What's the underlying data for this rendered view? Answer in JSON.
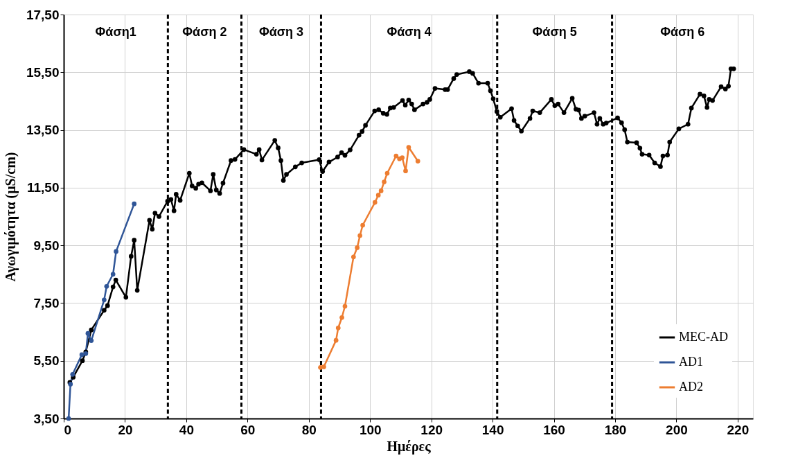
{
  "chart_data": {
    "type": "line",
    "xlabel": "Ημέρες",
    "ylabel": "Αγωγιμότητα (μS/cm)",
    "xlim": [
      0,
      225
    ],
    "xticks": [
      0,
      20,
      40,
      60,
      80,
      100,
      120,
      140,
      160,
      180,
      200,
      220
    ],
    "ylim": [
      3.5,
      17.5
    ],
    "yticks": [
      {
        "value": 3.5,
        "label": "3,50"
      },
      {
        "value": 5.5,
        "label": "5,50"
      },
      {
        "value": 7.5,
        "label": "7,50"
      },
      {
        "value": 9.5,
        "label": "9,50"
      },
      {
        "value": 11.5,
        "label": "11,50"
      },
      {
        "value": 13.5,
        "label": "13,50"
      },
      {
        "value": 15.5,
        "label": "15,50"
      },
      {
        "value": 17.5,
        "label": "17,50"
      }
    ],
    "grid": true,
    "legend": "bottom right",
    "marker": "circle",
    "line_style": "solid",
    "series": [
      {
        "name": "MEC-AD",
        "color": "#000000",
        "x": [
          2,
          3.1,
          6.1,
          7.2,
          9.0,
          13.2,
          14.3,
          16.1,
          17.0,
          20.3,
          22.0,
          23.0,
          24.0,
          28.0,
          28.9,
          29.8,
          31.1,
          33.9,
          35.0,
          36.0,
          36.7,
          38.0,
          41.0,
          41.9,
          43.1,
          44.0,
          45.1,
          47.9,
          48.8,
          49.8,
          50.9,
          52.0,
          54.6,
          55.9,
          58.8,
          62.9,
          63.8,
          64.7,
          68.9,
          70.0,
          70.9,
          71.7,
          72.7,
          75.6,
          77.7,
          83.4,
          84.5,
          86.6,
          89.4,
          90.7,
          91.8,
          93.5,
          96.4,
          97.4,
          98.5,
          101.5,
          102.8,
          104.3,
          105.5,
          106.6,
          107.7,
          110.6,
          111.5,
          112.6,
          113.6,
          114.5,
          117.3,
          118.6,
          119.5,
          121.2,
          124.5,
          125.3,
          127.3,
          128.3,
          132.4,
          133.5,
          135.4,
          138.4,
          139.3,
          140.2,
          141.4,
          142.5,
          146.2,
          147.0,
          148.2,
          149.4,
          152.2,
          153.1,
          155.4,
          159.2,
          160.3,
          161.4,
          163.3,
          166.0,
          167.2,
          168.1,
          169.0,
          170.1,
          173.1,
          174.1,
          175.0,
          176.1,
          177.1,
          180.8,
          182.1,
          183.1,
          184.0,
          187.0,
          188.1,
          188.8,
          191.1,
          192.9,
          194.8,
          195.6,
          197.1,
          197.8,
          200.8,
          203.8,
          204.9,
          207.7,
          209.0,
          210.0,
          210.7,
          211.8,
          214.6,
          216.0,
          217.0,
          217.8,
          218.7
        ],
        "values": [
          4.75,
          4.93,
          5.5,
          5.81,
          6.57,
          7.25,
          7.41,
          8.06,
          8.3,
          7.7,
          9.12,
          9.68,
          7.94,
          10.37,
          10.06,
          10.62,
          10.5,
          11.03,
          11.09,
          10.7,
          11.27,
          11.06,
          12.0,
          11.56,
          11.48,
          11.62,
          11.67,
          11.39,
          11.96,
          11.42,
          11.3,
          11.66,
          12.44,
          12.48,
          12.82,
          12.66,
          12.82,
          12.46,
          13.14,
          12.88,
          12.44,
          11.75,
          11.96,
          12.22,
          12.36,
          12.47,
          12.06,
          12.39,
          12.56,
          12.71,
          12.62,
          12.81,
          13.32,
          13.45,
          13.66,
          14.16,
          14.2,
          14.08,
          14.04,
          14.26,
          14.28,
          14.52,
          14.36,
          14.54,
          14.4,
          14.2,
          14.4,
          14.46,
          14.56,
          14.94,
          14.9,
          14.9,
          15.28,
          15.42,
          15.52,
          15.46,
          15.12,
          15.12,
          14.86,
          14.58,
          14.14,
          13.94,
          14.24,
          13.83,
          13.64,
          13.46,
          13.9,
          14.16,
          14.1,
          14.56,
          14.34,
          14.4,
          14.1,
          14.6,
          14.22,
          14.19,
          13.9,
          13.98,
          14.1,
          13.7,
          13.9,
          13.7,
          13.74,
          13.92,
          13.75,
          13.51,
          13.08,
          13.06,
          12.87,
          12.66,
          12.63,
          12.36,
          12.23,
          12.6,
          12.63,
          13.08,
          13.54,
          13.7,
          14.26,
          14.74,
          14.68,
          14.28,
          14.56,
          14.52,
          15.0,
          14.92,
          15.02,
          15.62,
          15.62
        ]
      },
      {
        "name": "AD1",
        "color": "#2f5597",
        "x": [
          1.6,
          2.2,
          2.9,
          5.9,
          7.2,
          7.9,
          9.0,
          13.2,
          14.0,
          16.1,
          17.1,
          23.0
        ],
        "values": [
          3.5,
          4.69,
          5.03,
          5.71,
          5.75,
          6.45,
          6.2,
          7.61,
          8.08,
          8.5,
          9.29,
          10.94
        ]
      },
      {
        "name": "AD2",
        "color": "#ed7d31",
        "x": [
          83.8,
          84.9,
          88.9,
          89.6,
          90.8,
          91.8,
          94.6,
          95.8,
          96.7,
          97.6,
          101.6,
          102.7,
          103.6,
          104.6,
          105.6,
          108.5,
          109.6,
          110.5,
          111.6,
          112.6,
          115.6
        ],
        "values": [
          5.27,
          5.29,
          6.21,
          6.64,
          7.0,
          7.39,
          9.1,
          9.42,
          9.84,
          10.2,
          10.99,
          11.24,
          11.39,
          11.7,
          12.0,
          12.6,
          12.5,
          12.54,
          12.08,
          12.9,
          12.42
        ]
      }
    ],
    "ref_lines": [
      {
        "axis": "x",
        "value": 34,
        "color": "#000000",
        "line_style": "dashed"
      },
      {
        "axis": "x",
        "value": 58,
        "color": "#000000",
        "line_style": "dashed"
      },
      {
        "axis": "x",
        "value": 84,
        "color": "#000000",
        "line_style": "dashed"
      },
      {
        "axis": "x",
        "value": 141.5,
        "color": "#000000",
        "line_style": "dashed"
      },
      {
        "axis": "x",
        "value": 179,
        "color": "#000000",
        "line_style": "dashed"
      }
    ],
    "annotations": [
      "Φάση1",
      "Φάση 2",
      "Φάση 3",
      "Φάση 4",
      "Φάση 5",
      "Φάση 6"
    ]
  }
}
